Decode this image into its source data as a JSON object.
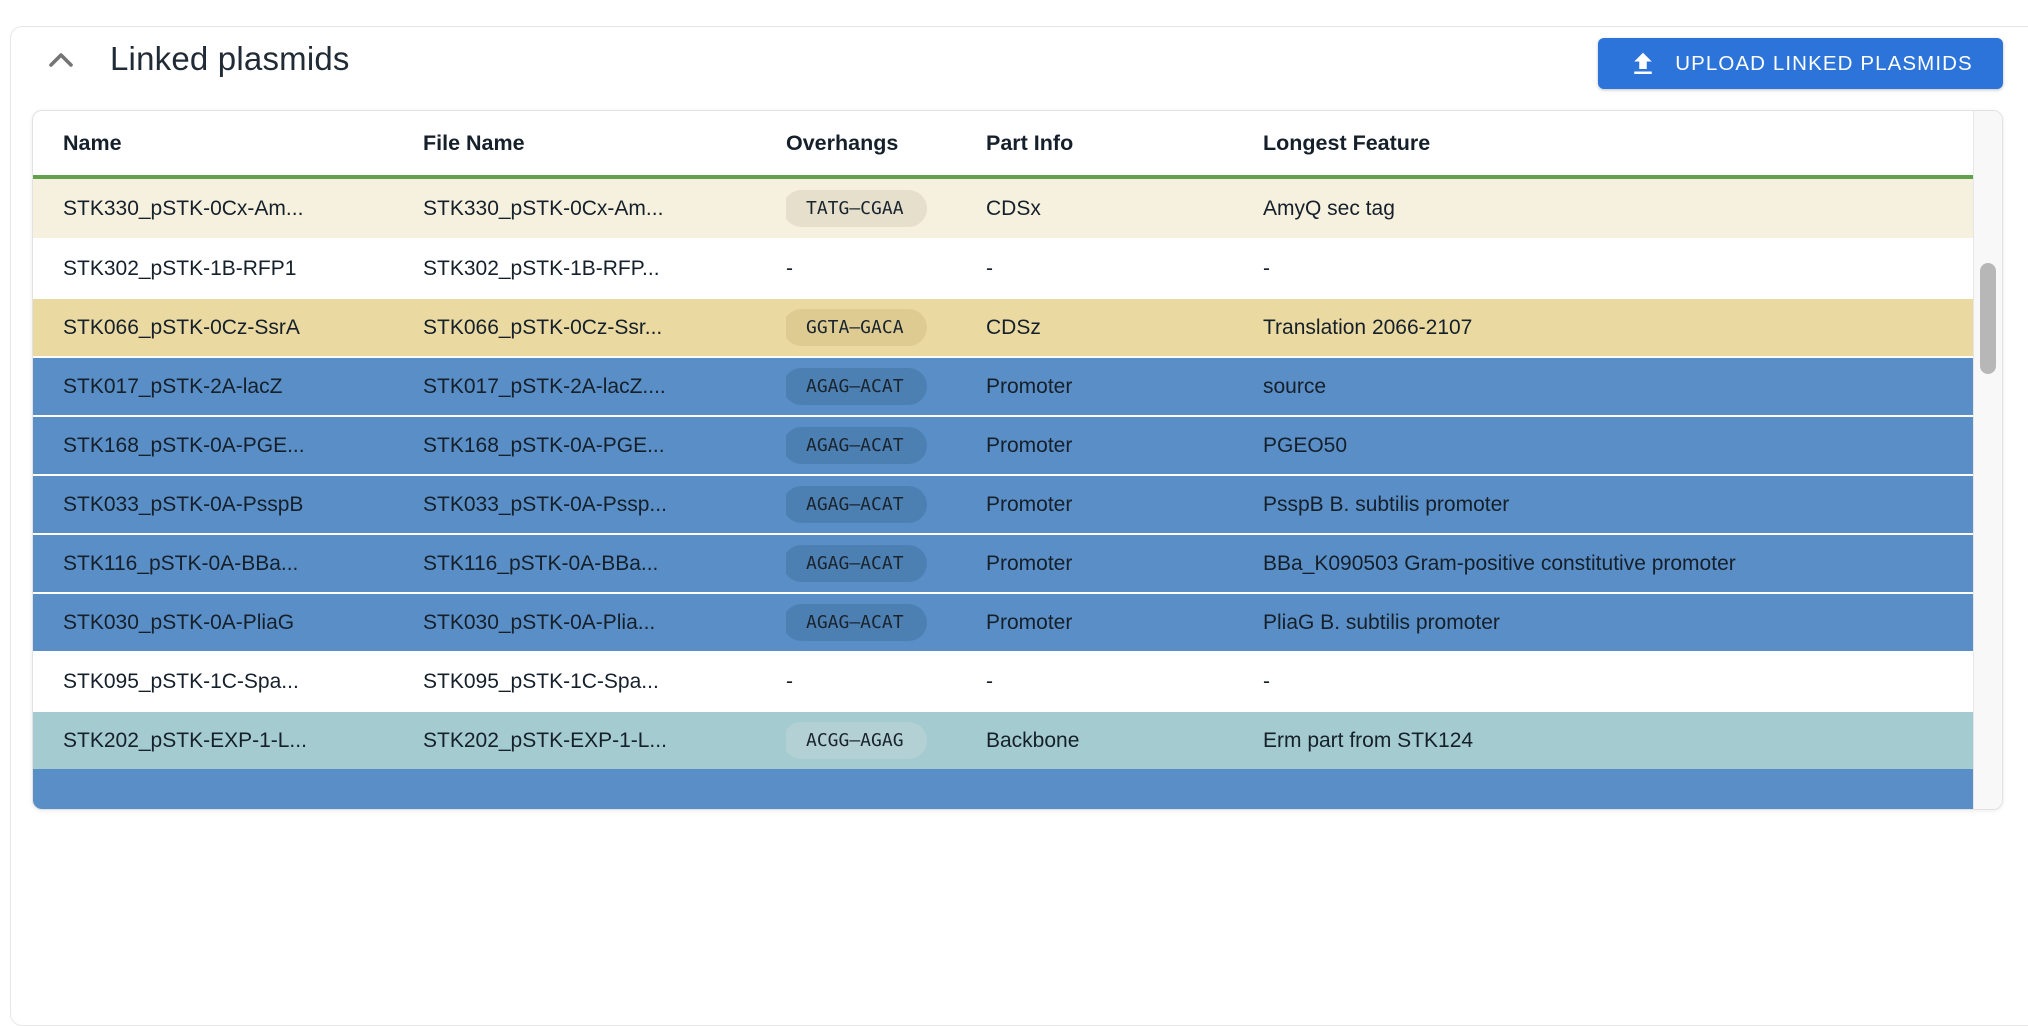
{
  "header": {
    "title": "Linked plasmids",
    "collapse_icon": "chevron-up-icon",
    "upload_button": {
      "label": "UPLOAD LINKED PLASMIDS",
      "icon": "upload-icon"
    }
  },
  "table": {
    "columns": [
      "Name",
      "File Name",
      "Overhangs",
      "Part Info",
      "Longest Feature"
    ],
    "rows": [
      {
        "name": "STK330_pSTK-0Cx-Am...",
        "file_name": "STK330_pSTK-0Cx-Am...",
        "overhangs": "TATG–CGAA",
        "part_info": "CDSx",
        "longest_feature": "AmyQ sec tag",
        "row_color": "cream"
      },
      {
        "name": "STK302_pSTK-1B-RFP1",
        "file_name": "STK302_pSTK-1B-RFP...",
        "overhangs": "-",
        "part_info": "-",
        "longest_feature": "-",
        "row_color": "white"
      },
      {
        "name": "STK066_pSTK-0Cz-SsrA",
        "file_name": "STK066_pSTK-0Cz-Ssr...",
        "overhangs": "GGTA–GACA",
        "part_info": "CDSz",
        "longest_feature": "Translation 2066-2107",
        "row_color": "tan"
      },
      {
        "name": "STK017_pSTK-2A-lacZ",
        "file_name": "STK017_pSTK-2A-lacZ....",
        "overhangs": "AGAG–ACAT",
        "part_info": "Promoter",
        "longest_feature": "source",
        "row_color": "blue"
      },
      {
        "name": "STK168_pSTK-0A-PGE...",
        "file_name": "STK168_pSTK-0A-PGE...",
        "overhangs": "AGAG–ACAT",
        "part_info": "Promoter",
        "longest_feature": "PGEO50",
        "row_color": "blue"
      },
      {
        "name": "STK033_pSTK-0A-PsspB",
        "file_name": "STK033_pSTK-0A-Pssp...",
        "overhangs": "AGAG–ACAT",
        "part_info": "Promoter",
        "longest_feature": "PsspB B. subtilis promoter",
        "row_color": "blue"
      },
      {
        "name": "STK116_pSTK-0A-BBa...",
        "file_name": "STK116_pSTK-0A-BBa...",
        "overhangs": "AGAG–ACAT",
        "part_info": "Promoter",
        "longest_feature": "BBa_K090503 Gram-positive constitutive promoter",
        "row_color": "blue"
      },
      {
        "name": "STK030_pSTK-0A-PliaG",
        "file_name": "STK030_pSTK-0A-Plia...",
        "overhangs": "AGAG–ACAT",
        "part_info": "Promoter",
        "longest_feature": "PliaG B. subtilis promoter",
        "row_color": "blue"
      },
      {
        "name": "STK095_pSTK-1C-Spa...",
        "file_name": "STK095_pSTK-1C-Spa...",
        "overhangs": "-",
        "part_info": "-",
        "longest_feature": "-",
        "row_color": "white"
      },
      {
        "name": "STK202_pSTK-EXP-1-L...",
        "file_name": "STK202_pSTK-EXP-1-L...",
        "overhangs": "ACGG–AGAG",
        "part_info": "Backbone",
        "longest_feature": "Erm part from STK124",
        "row_color": "teal"
      }
    ],
    "partial_next_row_color": "blue"
  },
  "colors": {
    "accent_button_blue": "#2d74da",
    "header_divider_green": "#62a14b",
    "row_cream": "#f6f1de",
    "row_tan": "#ead9a0",
    "row_blue": "#5a8ec6",
    "row_teal": "#a4cbd0",
    "scrollbar_thumb": "#b7b7b7"
  }
}
